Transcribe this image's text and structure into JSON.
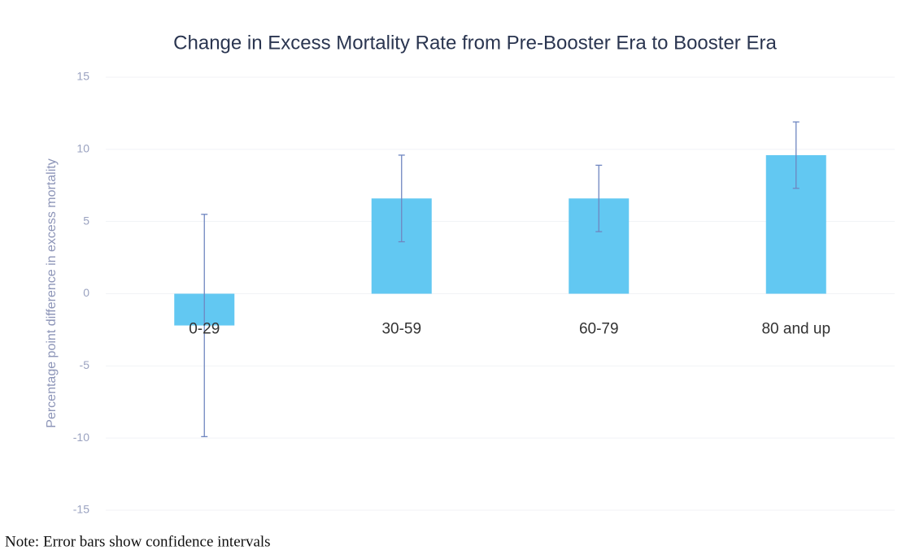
{
  "chart_data": {
    "type": "bar",
    "title": "Change in Excess Mortality Rate from Pre-Booster Era to Booster Era",
    "y_label": "Percentage point difference in excess mortality",
    "categories": [
      "0-29",
      "30-59",
      "60-79",
      "80 and up"
    ],
    "values": [
      -2.2,
      6.6,
      6.6,
      9.6
    ],
    "errors": [
      7.7,
      3,
      2.3,
      2.3
    ],
    "color": "#62c8f2",
    "error_color": "#6f86c0",
    "ylim": [
      -15,
      15
    ],
    "yticks": [
      -15,
      -10,
      -5,
      0,
      5,
      10,
      15
    ],
    "grid": true,
    "note": "Note: Error bars show confidence intervals"
  }
}
